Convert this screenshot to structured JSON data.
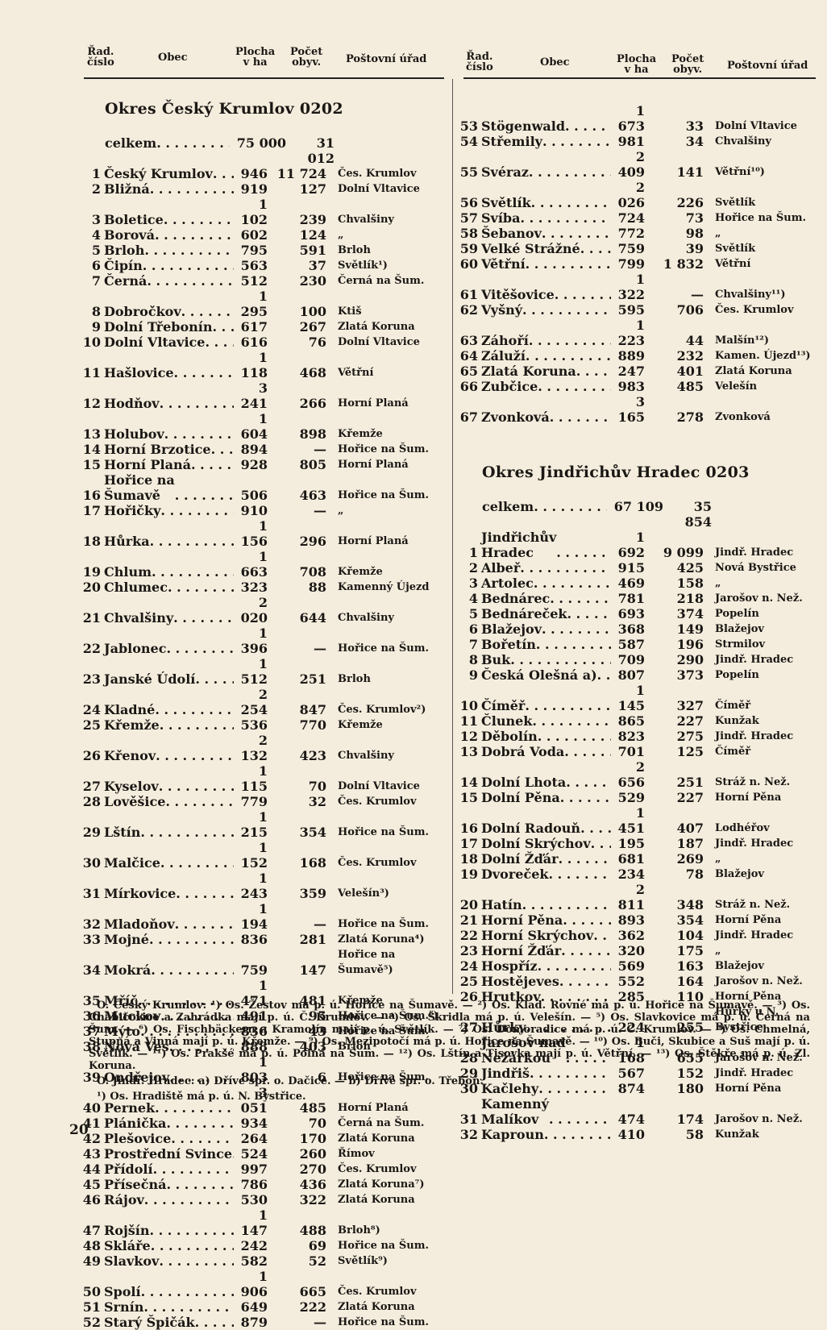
{
  "columns": [
    "Řad.\nčíslo",
    "Obec",
    "Plocha\nv ha",
    "Počet\nobyv.",
    "Poštovní úřad"
  ],
  "sections": [
    {
      "title": "Okres Český Krumlov 0202",
      "total": {
        "label": "celkem",
        "area": "75 000",
        "pop": "31 012"
      },
      "rows": [
        [
          "1",
          "Český Krumlov",
          "946",
          "11 724",
          "Čes. Krumlov"
        ],
        [
          "2",
          "Bližná",
          "919",
          "127",
          "Dolní Vltavice"
        ],
        [
          "3",
          "Boletice",
          "1 102",
          "239",
          "Chvalšiny"
        ],
        [
          "4",
          "Borová",
          "602",
          "124",
          "„"
        ],
        [
          "5",
          "Brloh",
          "795",
          "591",
          "Brloh"
        ],
        [
          "6",
          "Čipín",
          "563",
          "37",
          "Světlík¹)"
        ],
        [
          "7",
          "Černá",
          "512",
          "230",
          "Černá na Šum."
        ],
        [
          "8",
          "Dobročkov",
          "1 295",
          "100",
          "Ktiš"
        ],
        [
          "9",
          "Dolní Třebonín",
          "617",
          "267",
          "Zlatá Koruna"
        ],
        [
          "10",
          "Dolní Vltavice",
          "616",
          "76",
          "Dolní Vltavice"
        ],
        [
          "11",
          "Hašlovice",
          "1 118",
          "468",
          "Větřní"
        ],
        [
          "12",
          "Hodňov",
          "3 241",
          "266",
          "Horní Planá"
        ],
        [
          "13",
          "Holubov",
          "1 604",
          "898",
          "Křemže"
        ],
        [
          "14",
          "Horní Brzotice",
          "894",
          "—",
          "Hořice na Šum."
        ],
        [
          "15",
          "Horní Planá",
          "928",
          "805",
          "Horní Planá"
        ],
        [
          "16",
          "Hořice na\nŠumavě",
          "506",
          "463",
          "Hořice na Šum."
        ],
        [
          "17",
          "Hořičky",
          "910",
          "—",
          "„"
        ],
        [
          "18",
          "Hůrka",
          "1 156",
          "296",
          "Horní Planá"
        ],
        [
          "19",
          "Chlum",
          "1 663",
          "708",
          "Křemže"
        ],
        [
          "20",
          "Chlumec",
          "323",
          "88",
          "Kamenný Újezd"
        ],
        [
          "21",
          "Chvalšiny",
          "2 020",
          "644",
          "Chvalšiny"
        ],
        [
          "22",
          "Jablonec",
          "1 396",
          "—",
          "Hořice na Šum."
        ],
        [
          "23",
          "Janské Údolí",
          "1 512",
          "251",
          "Brloh"
        ],
        [
          "24",
          "Kladné",
          "2 254",
          "847",
          "Čes. Krumlov²)"
        ],
        [
          "25",
          "Křemže",
          "536",
          "770",
          "Křemže"
        ],
        [
          "26",
          "Křenov",
          "2 132",
          "423",
          "Chvalšiny"
        ],
        [
          "27",
          "Kyselov",
          "1 115",
          "70",
          "Dolní Vltavice"
        ],
        [
          "28",
          "Lověšice",
          "779",
          "32",
          "Čes. Krumlov"
        ],
        [
          "29",
          "Lštín",
          "1 215",
          "354",
          "Hořice na Šum."
        ],
        [
          "30",
          "Malčice",
          "1 152",
          "168",
          "Čes. Krumlov"
        ],
        [
          "31",
          "Mírkovice",
          "1 243",
          "359",
          "Velešín³)"
        ],
        [
          "32",
          "Mladoňov",
          "1 194",
          "—",
          "Hořice na Šum."
        ],
        [
          "33",
          "Mojné",
          "836",
          "281",
          "Zlatá Koruna⁴)"
        ],
        [
          "34",
          "Mokrá",
          "759",
          "147",
          "Hořice na\nŠumavě⁵)"
        ],
        [
          "35",
          "Mříč",
          "1 471",
          "481",
          "Křemže"
        ],
        [
          "36",
          "Muckov",
          "491",
          "95",
          "Hořice na Šum.⁶)"
        ],
        [
          "37",
          "Mýto",
          "836",
          "43",
          "Hořice na Šum."
        ],
        [
          "38",
          "Nová Ves",
          "888",
          "403",
          "Brloh"
        ],
        [
          "39",
          "Ondřejov",
          "1 803",
          "6",
          "Hořice na Šum."
        ],
        [
          "40",
          "Pernek",
          "3 051",
          "485",
          "Horní Planá"
        ],
        [
          "41",
          "Plánička",
          "934",
          "70",
          "Černá na Šum."
        ],
        [
          "42",
          "Plešovice",
          "264",
          "170",
          "Zlatá Koruna"
        ],
        [
          "43",
          "Prostřední Svince",
          "524",
          "260",
          "Římov"
        ],
        [
          "44",
          "Přídolí",
          "997",
          "270",
          "Čes. Krumlov"
        ],
        [
          "45",
          "Přísečná",
          "786",
          "436",
          "Zlatá Koruna⁷)"
        ],
        [
          "46",
          "Rájov",
          "530",
          "322",
          "Zlatá Koruna"
        ],
        [
          "47",
          "Rojšín",
          "1 147",
          "488",
          "Brloh⁸)"
        ],
        [
          "48",
          "Skláře",
          "242",
          "69",
          "Hořice na Šum."
        ],
        [
          "49",
          "Slavkov",
          "582",
          "52",
          "Světlík⁹)"
        ],
        [
          "50",
          "Spolí",
          "1 906",
          "665",
          "Čes. Krumlov"
        ],
        [
          "51",
          "Srnín",
          "649",
          "222",
          "Zlatá Koruna"
        ],
        [
          "52",
          "Starý Špičák",
          "879",
          "—",
          "Hořice na Šum."
        ],
        [
          "53",
          "Stögenwald",
          "1 673",
          "33",
          "Dolní Vltavice"
        ],
        [
          "54",
          "Střemily",
          "981",
          "34",
          "Chvalšiny"
        ],
        [
          "55",
          "Svéraz",
          "2 409",
          "141",
          "Větřní¹⁰)"
        ],
        [
          "56",
          "Světlík",
          "2 026",
          "226",
          "Světlík"
        ],
        [
          "57",
          "Svíba",
          "724",
          "73",
          "Hořice na Šum."
        ],
        [
          "58",
          "Šebanov",
          "772",
          "98",
          "„"
        ],
        [
          "59",
          "Velké Strážné",
          "759",
          "39",
          "Světlík"
        ],
        [
          "60",
          "Větřní",
          "799",
          "1 832",
          "Větřní"
        ],
        [
          "61",
          "Vitěšovice",
          "1 322",
          "—",
          "Chvalšiny¹¹)"
        ],
        [
          "62",
          "Vyšný",
          "595",
          "706",
          "Čes. Krumlov"
        ],
        [
          "63",
          "Záhoří",
          "1 223",
          "44",
          "Malšín¹²)"
        ],
        [
          "64",
          "Záluží",
          "889",
          "232",
          "Kamen. Újezd¹³)"
        ],
        [
          "65",
          "Zlatá Koruna",
          "247",
          "401",
          "Zlatá Koruna"
        ],
        [
          "66",
          "Zubčice",
          "983",
          "485",
          "Velešín"
        ],
        [
          "67",
          "Zvonková",
          "3 165",
          "278",
          "Zvonková"
        ]
      ]
    },
    {
      "title": "Okres Jindřichův Hradec 0203",
      "total": {
        "label": "celkem",
        "area": "67 109",
        "pop": "35 854"
      },
      "rows": [
        [
          "1",
          "Jindřichův\nHradec",
          "1 692",
          "9 099",
          "Jindř. Hradec"
        ],
        [
          "2",
          "Albeř",
          "915",
          "425",
          "Nová Bystřice"
        ],
        [
          "3",
          "Artolec",
          "469",
          "158",
          "„"
        ],
        [
          "4",
          "Bednárec",
          "781",
          "218",
          "Jarošov n. Než."
        ],
        [
          "5",
          "Bednáreček",
          "693",
          "374",
          "Popelín"
        ],
        [
          "6",
          "Blažejov",
          "368",
          "149",
          "Blažejov"
        ],
        [
          "7",
          "Bořetín",
          "587",
          "196",
          "Strmilov"
        ],
        [
          "8",
          "Buk",
          "709",
          "290",
          "Jindř. Hradec"
        ],
        [
          "9",
          "Česká Olešná a)",
          "807",
          "373",
          "Popelín"
        ],
        [
          "10",
          "Číměř",
          "1 145",
          "327",
          "Číměř"
        ],
        [
          "11",
          "Člunek",
          "865",
          "227",
          "Kunžak"
        ],
        [
          "12",
          "Děbolín",
          "823",
          "275",
          "Jindř. Hradec"
        ],
        [
          "13",
          "Dobrá Voda",
          "701",
          "125",
          "Číměř"
        ],
        [
          "14",
          "Dolní Lhota",
          "2 656",
          "251",
          "Stráž n. Než."
        ],
        [
          "15",
          "Dolní Pěna",
          "529",
          "227",
          "Horní Pěna"
        ],
        [
          "16",
          "Dolní Radouň",
          "1 451",
          "407",
          "Lodhéřov"
        ],
        [
          "17",
          "Dolní Skrýchov",
          "195",
          "187",
          "Jindř. Hradec"
        ],
        [
          "18",
          "Dolní Žďár",
          "681",
          "269",
          "„"
        ],
        [
          "19",
          "Dvoreček",
          "234",
          "78",
          "Blažejov"
        ],
        [
          "20",
          "Hatín",
          "2 811",
          "348",
          "Stráž n. Než."
        ],
        [
          "21",
          "Horní Pěna",
          "893",
          "354",
          "Horní Pěna"
        ],
        [
          "22",
          "Horní Skrýchov",
          "362",
          "104",
          "Jindř. Hradec"
        ],
        [
          "23",
          "Horní Žďár",
          "320",
          "175",
          "„"
        ],
        [
          "24",
          "Hospříz",
          "569",
          "163",
          "Blažejov"
        ],
        [
          "25",
          "Hostějeves",
          "552",
          "164",
          "Jarošov n. Než."
        ],
        [
          "26",
          "Hrutkov",
          "285",
          "110",
          "Horní Pěna"
        ],
        [
          "27",
          "Hůrky",
          "224",
          "255",
          "Hůrky u N.\nBystřice"
        ],
        [
          "28",
          "Jarošov nad\nNežárkou",
          "1 168",
          "655",
          "Jarošov n. Než."
        ],
        [
          "29",
          "Jindřiš",
          "567",
          "152",
          "Jindř. Hradec"
        ],
        [
          "30",
          "Kačlehy",
          "874",
          "180",
          "Horní Pěna"
        ],
        [
          "31",
          "Kamenný\nMalíkov",
          "474",
          "174",
          "Jarošov n. Než."
        ],
        [
          "32",
          "Kaproun",
          "410",
          "58",
          "Kunžak"
        ]
      ]
    }
  ],
  "notes": [
    "O. Český Krumlov: ¹) Os. Žestov má p. ú. Hořice na Šumavě. — ²) Os. Klad. Rovné má p. ú. Hořice na Šumavě. — ³) Os. Chabičovice a Zahrádka mají p. ú. Č. Krumlov. — ⁴) Os. Škridla má p. ú. Velešín. — ⁵) Os. Slavkovice má p. ú. Černá na Šum. — ⁶) Os. Fischbäckern a Kramolín mají p. ú. Světlík. — ⁷) Os. Domoradice má p. ú. Č. Krumlov. — ⁸) Os. Chmelná, Stupná a Vinná mají p. ú. Křemže. — ⁹) Os. Mezipotočí má p. ú. Hořice na Šumavě. — ¹⁰) Os. Buči, Skubice a Suš mají p. ú. Světlík. — ¹¹) Os. Prakšé má p. ú. Polná na Šum. — ¹²) Os. Lštín a Tisovka mají p. ú. Větřní. — ¹³) Os. Štěkře má p. ú. Zl. Koruna.",
    "O. Jindř. Hradec: a) Dříve spr. o. Dačice. — b) Dříve spr. o. Třeboň.",
    "¹) Os. Hradiště má p. ú. N. Bystřice."
  ],
  "page_number": "20"
}
